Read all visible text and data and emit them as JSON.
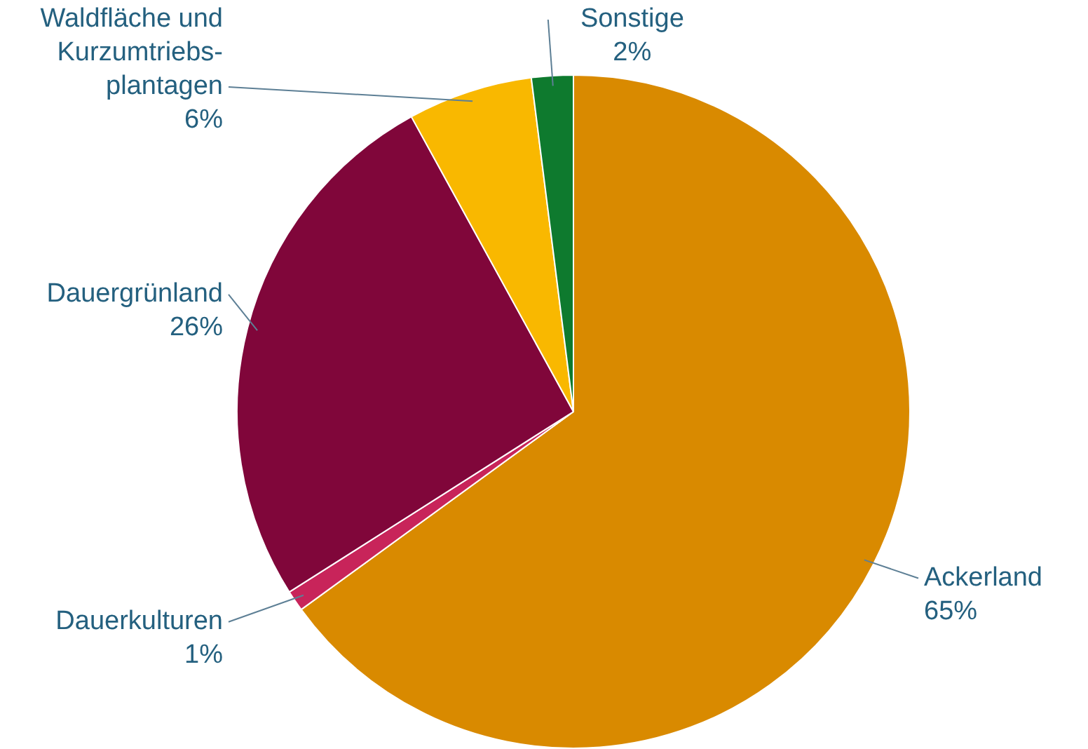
{
  "chart_data": {
    "type": "pie",
    "categories": [
      "Ackerland",
      "Dauerkulturen",
      "Dauergrünland",
      "Waldfläche und Kurzumtriebs-plantagen",
      "Sonstige"
    ],
    "values": [
      65,
      1,
      26,
      6,
      2
    ],
    "colors": [
      "#d98a00",
      "#c8245a",
      "#80063a",
      "#f9b800",
      "#0e7a2e"
    ],
    "value_labels": [
      "65%",
      "1%",
      "26%",
      "6%",
      "2%"
    ],
    "legend": false
  }
}
